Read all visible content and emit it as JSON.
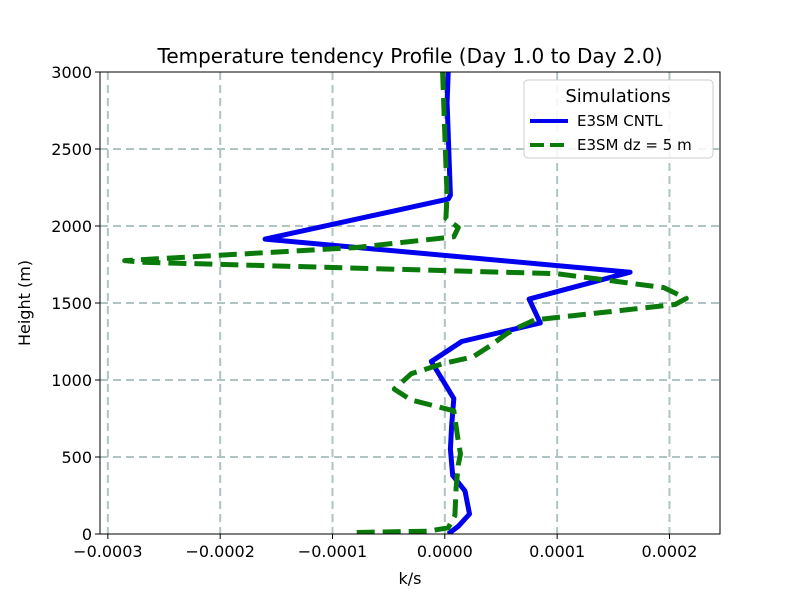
{
  "chart_data": {
    "type": "line",
    "title": "Temperature tendency Profile (Day 1.0 to Day 2.0)",
    "xlabel": "k/s",
    "ylabel": "Height (m)",
    "xlim": [
      -0.000307,
      0.000245
    ],
    "ylim": [
      0,
      3000
    ],
    "grid": true,
    "x_ticks": [
      -0.0003,
      -0.0002,
      -0.0001,
      0.0,
      0.0001,
      0.0002
    ],
    "x_tick_labels": [
      "−0.0003",
      "−0.0002",
      "−0.0001",
      "0.0000",
      "0.0001",
      "0.0002"
    ],
    "y_ticks": [
      0,
      500,
      1000,
      1500,
      2000,
      2500,
      3000
    ],
    "y_tick_labels": [
      "0",
      "500",
      "1000",
      "1500",
      "2000",
      "2500",
      "3000"
    ],
    "legend": {
      "title": "Simulations",
      "position": "top-right"
    },
    "series": [
      {
        "name": "E3SM CNTL",
        "color": "#0000ee",
        "style": "solid",
        "points": [
          [
            3e-06,
            3000
          ],
          [
            2e-06,
            2800
          ],
          [
            3e-06,
            2600
          ],
          [
            4e-06,
            2400
          ],
          [
            5e-06,
            2200
          ],
          [
            3e-06,
            2175
          ],
          [
            -0.00016,
            1915
          ],
          [
            0.000165,
            1700
          ],
          [
            7.5e-05,
            1525
          ],
          [
            8.5e-05,
            1370
          ],
          [
            1.5e-05,
            1250
          ],
          [
            -1.2e-05,
            1120
          ],
          [
            8e-06,
            880
          ],
          [
            6e-06,
            700
          ],
          [
            5e-06,
            550
          ],
          [
            7e-06,
            380
          ],
          [
            1.8e-05,
            280
          ],
          [
            2.2e-05,
            130
          ],
          [
            1.2e-05,
            50
          ],
          [
            3e-06,
            0
          ]
        ]
      },
      {
        "name": "E3SM dz = 5 m",
        "color": "#0a7a0a",
        "style": "dashed",
        "points": [
          [
            -2e-06,
            3000
          ],
          [
            -1e-06,
            2800
          ],
          [
            0.0,
            2600
          ],
          [
            1e-06,
            2400
          ],
          [
            2e-06,
            2200
          ],
          [
            1e-06,
            2050
          ],
          [
            1.2e-05,
            1990
          ],
          [
            8e-06,
            1930
          ],
          [
            -8e-05,
            1860
          ],
          [
            -0.000285,
            1775
          ],
          [
            -0.00027,
            1765
          ],
          [
            0.0001,
            1690
          ],
          [
            0.000195,
            1600
          ],
          [
            0.000215,
            1530
          ],
          [
            0.000205,
            1490
          ],
          [
            8e-05,
            1390
          ],
          [
            6.5e-05,
            1340
          ],
          [
            5.5e-05,
            1300
          ],
          [
            4e-05,
            1220
          ],
          [
            2.5e-05,
            1150
          ],
          [
            0.0,
            1110
          ],
          [
            -3e-05,
            1040
          ],
          [
            -4.5e-05,
            940
          ],
          [
            -3e-05,
            870
          ],
          [
            8e-06,
            800
          ],
          [
            1e-05,
            700
          ],
          [
            1.2e-05,
            600
          ],
          [
            1.4e-05,
            520
          ],
          [
            1.2e-05,
            450
          ],
          [
            1e-05,
            300
          ],
          [
            9e-06,
            120
          ],
          [
            3e-06,
            40
          ],
          [
            -1.5e-05,
            18
          ],
          [
            -8e-05,
            10
          ]
        ]
      }
    ]
  }
}
